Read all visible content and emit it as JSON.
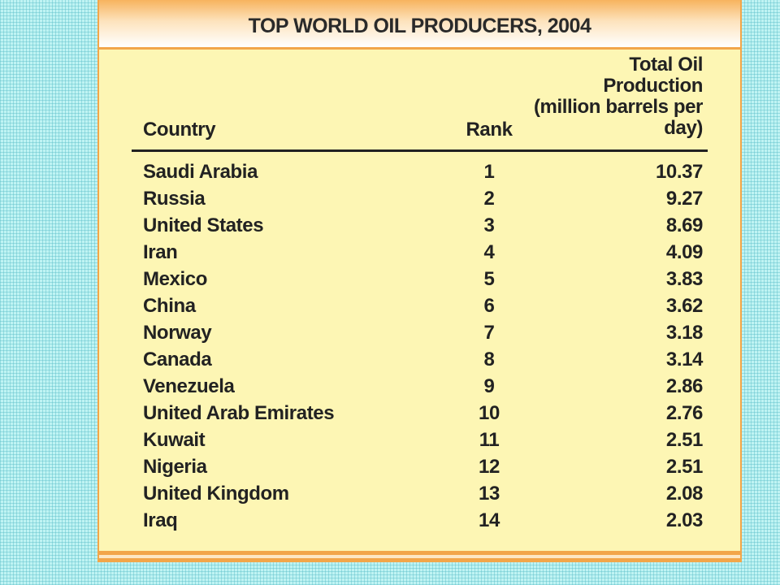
{
  "title": "TOP WORLD OIL PRODUCERS, 2004",
  "table": {
    "header": [
      "Country",
      "Rank",
      "Total Oil Production (million barrels per day)"
    ],
    "rows": [
      [
        "Saudi Arabia",
        "1",
        "10.37"
      ],
      [
        "Russia",
        "2",
        "9.27"
      ],
      [
        "United States",
        "3",
        "8.69"
      ],
      [
        "Iran",
        "4",
        "4.09"
      ],
      [
        "Mexico",
        "5",
        "3.83"
      ],
      [
        "China",
        "6",
        "3.62"
      ],
      [
        "Norway",
        "7",
        "3.18"
      ],
      [
        "Canada",
        "8",
        "3.14"
      ],
      [
        "Venezuela",
        "9",
        "2.86"
      ],
      [
        "United Arab Emirates",
        "10",
        "2.76"
      ],
      [
        "Kuwait",
        "11",
        "2.51"
      ],
      [
        "Nigeria",
        "12",
        "2.51"
      ],
      [
        "United Kingdom",
        "13",
        "2.08"
      ],
      [
        "Iraq",
        "14",
        "2.03"
      ]
    ]
  }
}
